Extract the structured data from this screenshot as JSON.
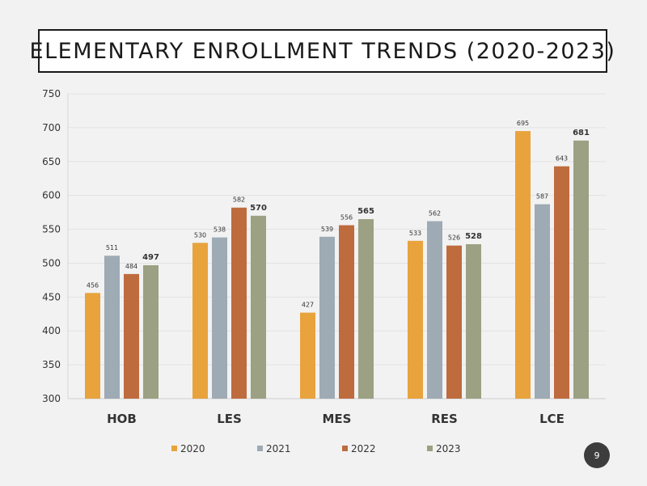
{
  "page": {
    "number": "9"
  },
  "chart_data": {
    "type": "bar",
    "title": "ELEMENTARY ENROLLMENT TRENDS (2020-2023)",
    "xlabel": "",
    "ylabel": "",
    "ylim": [
      300,
      750
    ],
    "yticks": [
      300,
      350,
      400,
      450,
      500,
      550,
      600,
      650,
      700,
      750
    ],
    "grid": true,
    "legend": "bottom",
    "categories": [
      "HOB",
      "LES",
      "MES",
      "RES",
      "LCE"
    ],
    "series": [
      {
        "name": "2020",
        "color": "#E8A33D",
        "values": [
          456,
          530,
          427,
          533,
          695
        ]
      },
      {
        "name": "2021",
        "color": "#9EAAB4",
        "values": [
          511,
          538,
          539,
          562,
          587
        ]
      },
      {
        "name": "2022",
        "color": "#BE6B3E",
        "values": [
          484,
          582,
          556,
          526,
          643
        ]
      },
      {
        "name": "2023",
        "color": "#9BA182",
        "values": [
          497,
          570,
          565,
          528,
          681
        ],
        "labels_bold": true
      }
    ]
  }
}
